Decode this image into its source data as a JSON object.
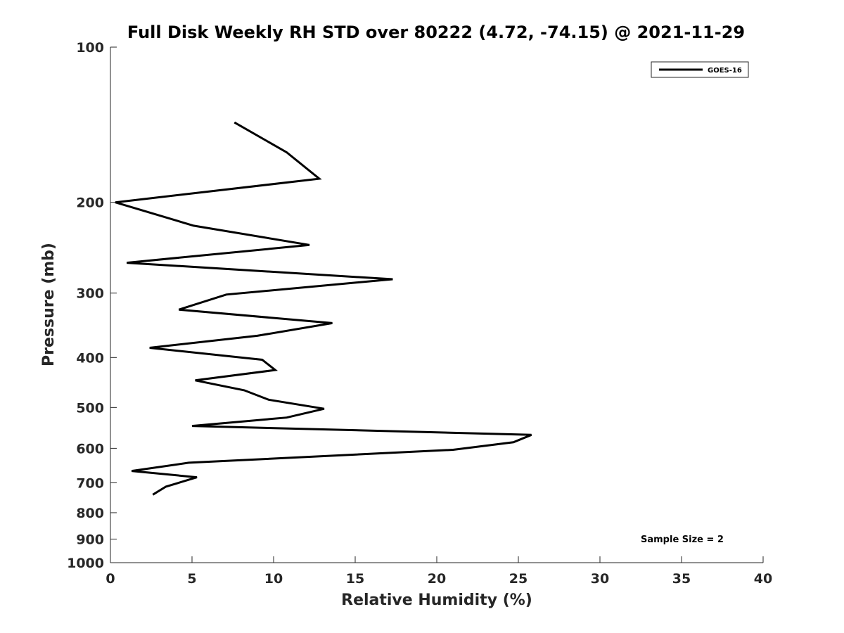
{
  "chart_data": {
    "type": "line",
    "title": "Full Disk Weekly RH STD over 80222 (4.72, -74.15) @ 2021-11-29",
    "xlabel": "Relative Humidity (%)",
    "ylabel": "Pressure (mb)",
    "xlim": [
      0,
      40
    ],
    "ylim": [
      100,
      1000
    ],
    "yscale": "log",
    "y_reversed": true,
    "grid": false,
    "legend_position": "top-right",
    "x_ticks": [
      "0",
      "5",
      "10",
      "15",
      "20",
      "25",
      "30",
      "35",
      "40"
    ],
    "y_ticks": [
      "100",
      "200",
      "300",
      "400",
      "500",
      "600",
      "700",
      "800",
      "900",
      "1000"
    ],
    "series": [
      {
        "name": "GOES-16",
        "color": "#000000",
        "points": [
          {
            "rh": 7.6,
            "p": 140
          },
          {
            "rh": 10.8,
            "p": 160
          },
          {
            "rh": 12.8,
            "p": 180
          },
          {
            "rh": 0.3,
            "p": 200
          },
          {
            "rh": 5.1,
            "p": 222
          },
          {
            "rh": 12.2,
            "p": 242
          },
          {
            "rh": 1.0,
            "p": 262
          },
          {
            "rh": 17.3,
            "p": 282
          },
          {
            "rh": 7.1,
            "p": 302
          },
          {
            "rh": 4.2,
            "p": 323
          },
          {
            "rh": 13.6,
            "p": 343
          },
          {
            "rh": 9.0,
            "p": 363
          },
          {
            "rh": 2.4,
            "p": 383
          },
          {
            "rh": 9.3,
            "p": 404
          },
          {
            "rh": 10.1,
            "p": 423
          },
          {
            "rh": 5.2,
            "p": 443
          },
          {
            "rh": 8.2,
            "p": 463
          },
          {
            "rh": 9.7,
            "p": 483
          },
          {
            "rh": 13.1,
            "p": 503
          },
          {
            "rh": 10.8,
            "p": 523
          },
          {
            "rh": 5.0,
            "p": 543
          },
          {
            "rh": 25.8,
            "p": 565
          },
          {
            "rh": 24.7,
            "p": 584
          },
          {
            "rh": 21.0,
            "p": 604
          },
          {
            "rh": 4.8,
            "p": 640
          },
          {
            "rh": 1.3,
            "p": 664
          },
          {
            "rh": 5.3,
            "p": 683
          },
          {
            "rh": 3.4,
            "p": 712
          },
          {
            "rh": 2.6,
            "p": 738
          }
        ]
      }
    ],
    "annotation": "Sample Size = 2"
  }
}
